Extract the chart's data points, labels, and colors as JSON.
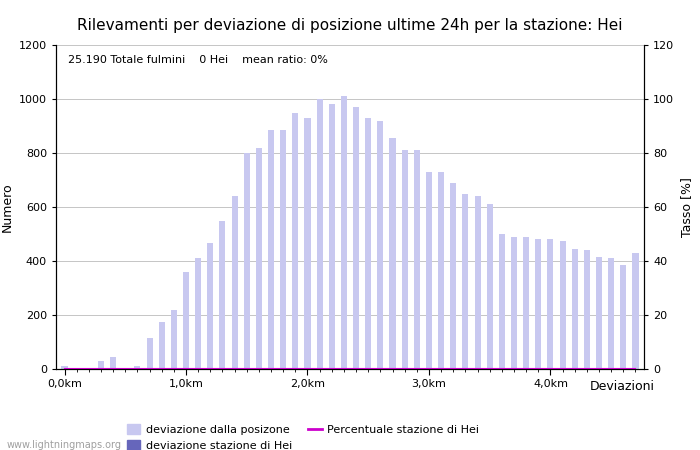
{
  "title": "Rilevamenti per deviazione di posizione ultime 24h per la stazione: Hei",
  "subtitle": "25.190 Totale fulmini    0 Hei    mean ratio: 0%",
  "xlabel": "Deviazioni",
  "ylabel_left": "Numero",
  "ylabel_right": "Tasso [%]",
  "bar_color": "#c8c8f0",
  "hei_bar_color": "#6666bb",
  "line_color": "#cc00cc",
  "background_color": "#ffffff",
  "plot_bg_color": "#ffffff",
  "grid_color": "#bbbbbb",
  "ylim_left": [
    0,
    1200
  ],
  "ylim_right": [
    0,
    120
  ],
  "yticks_left": [
    0,
    200,
    400,
    600,
    800,
    1000,
    1200
  ],
  "yticks_right": [
    0,
    20,
    40,
    60,
    80,
    100,
    120
  ],
  "bar_values": [
    10,
    2,
    2,
    30,
    45,
    2,
    10,
    115,
    175,
    220,
    360,
    410,
    465,
    550,
    640,
    800,
    820,
    885,
    885,
    950,
    930,
    1000,
    980,
    1010,
    970,
    930,
    920,
    855,
    810,
    810,
    730,
    730,
    690,
    650,
    640,
    610,
    500,
    490,
    490,
    480,
    480,
    475,
    445,
    440,
    415,
    410,
    385,
    430
  ],
  "hei_values": [
    0,
    0,
    0,
    0,
    0,
    0,
    0,
    0,
    0,
    0,
    0,
    0,
    0,
    0,
    0,
    0,
    0,
    0,
    0,
    0,
    0,
    0,
    0,
    0,
    0,
    0,
    0,
    0,
    0,
    0,
    0,
    0,
    0,
    0,
    0,
    0,
    0,
    0,
    0,
    0,
    0,
    0,
    0,
    0,
    0,
    0,
    0,
    0
  ],
  "line_values": [
    0,
    0,
    0,
    0,
    0,
    0,
    0,
    0,
    0,
    0,
    0,
    0,
    0,
    0,
    0,
    0,
    0,
    0,
    0,
    0,
    0,
    0,
    0,
    0,
    0,
    0,
    0,
    0,
    0,
    0,
    0,
    0,
    0,
    0,
    0,
    0,
    0,
    0,
    0,
    0,
    0,
    0,
    0,
    0,
    0,
    0,
    0,
    0
  ],
  "n_bars": 48,
  "xtick_positions": [
    0,
    10,
    20,
    30,
    40
  ],
  "xtick_labels": [
    "0,0km",
    "1,0km",
    "2,0km",
    "3,0km",
    "4,0km"
  ],
  "legend_entries": [
    {
      "label": "deviazione dalla posizone",
      "color": "#c8c8f0",
      "type": "bar"
    },
    {
      "label": "deviazione stazione di Hei",
      "color": "#6666bb",
      "type": "bar"
    },
    {
      "label": "Percentuale stazione di Hei",
      "color": "#cc00cc",
      "type": "line"
    }
  ],
  "watermark": "www.lightningmaps.org",
  "title_fontsize": 11,
  "label_fontsize": 9,
  "tick_fontsize": 8
}
